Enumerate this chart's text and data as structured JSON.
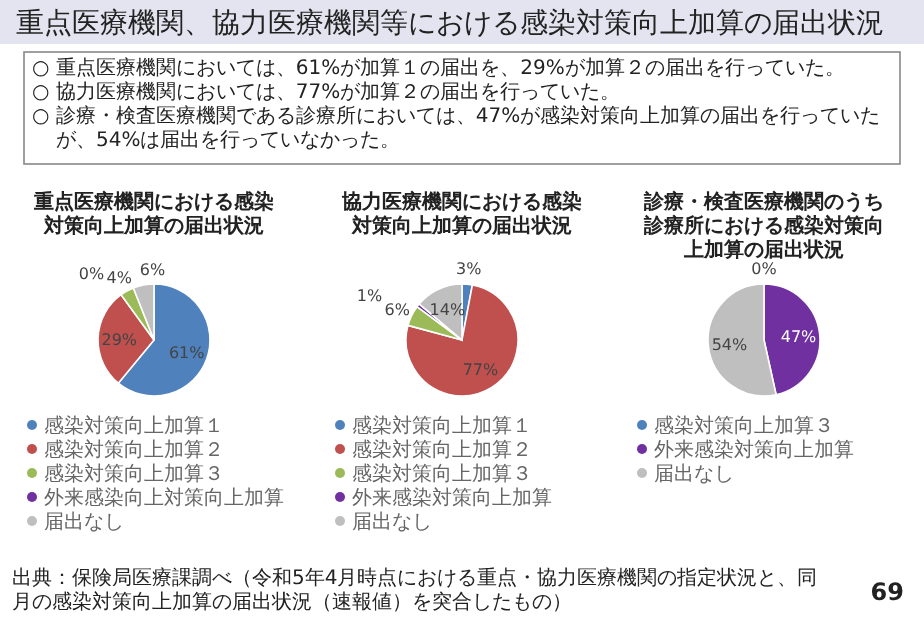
{
  "chart_data": [
    {
      "type": "pie",
      "title": "重点医療機関における感染対策向上加算の届出状況",
      "categories": [
        "感染対策向上加算１",
        "感染対策向上加算２",
        "感染対策向上加算３",
        "外来感染向上対策向上加算",
        "届出なし"
      ],
      "values": [
        61,
        29,
        4,
        0,
        6
      ],
      "value_labels": [
        "61%",
        "29%",
        "4%",
        "0%",
        "6%"
      ],
      "colors": [
        "#4f81bd",
        "#c0504d",
        "#9bbb59",
        "#7030a0",
        "#bfbfbf"
      ],
      "legend": "bottom",
      "annotations": [
        "重点医療機関、協力医療機関等における感染対策向上加算の届出状況",
        "○ 重点医療機関においては、61%が加算１の届出を、29%が加算２の届出を行っていた。",
        "○ 協力医療機関においては、77%が加算２の届出を行っていた。",
        "○ 診療・検査医療機関である診療所においては、47%が感染対策向上加算の届出を行っていたが、54%は届出を行っていなかった。",
        "出典：保険局医療課調べ（令和5年4月時点における重点・協力医療機関の指定状況と、同月の感染対策向上加算の届出状況（速報値）を突合したもの）",
        "69"
      ]
    },
    {
      "type": "pie",
      "title": "協力医療機関における感染対策向上加算の届出状況",
      "categories": [
        "感染対策向上加算１",
        "感染対策向上加算２",
        "感染対策向上加算３",
        "外来感染対策向上加算",
        "届出なし"
      ],
      "values": [
        3,
        77,
        6,
        1,
        14
      ],
      "value_labels": [
        "3%",
        "77%",
        "6%",
        "1%",
        "14%"
      ],
      "colors": [
        "#4f81bd",
        "#c0504d",
        "#9bbb59",
        "#7030a0",
        "#bfbfbf"
      ],
      "legend": "bottom"
    },
    {
      "type": "pie",
      "title": "診療・検査医療機関のうち診療所における感染対策向上加算の届出状況",
      "categories": [
        "感染対策向上加算３",
        "外来感染対策向上加算",
        "届出なし"
      ],
      "values": [
        0,
        47,
        54
      ],
      "value_labels": [
        "0%",
        "47%",
        "54%"
      ],
      "colors": [
        "#4f81bd",
        "#7030a0",
        "#bfbfbf"
      ],
      "legend": "bottom"
    }
  ]
}
